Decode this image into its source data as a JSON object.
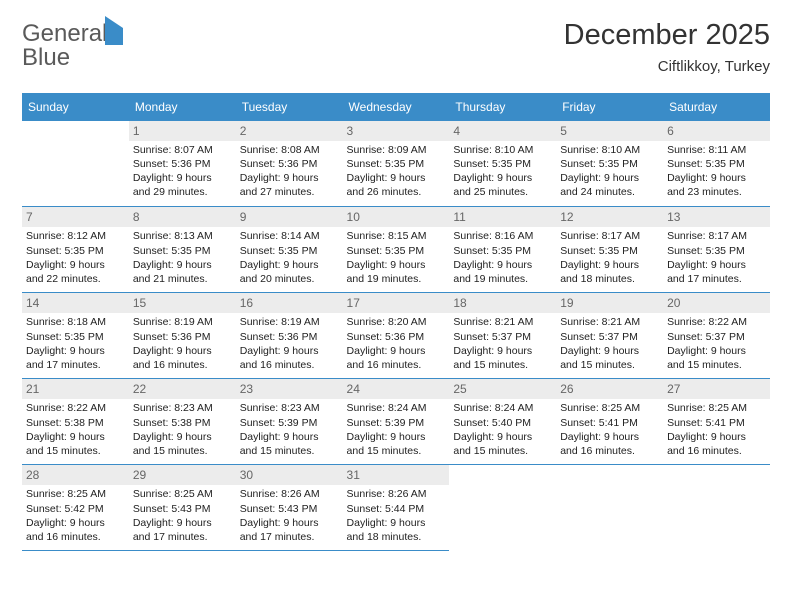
{
  "logo": {
    "text1": "General",
    "text2": "Blue"
  },
  "header": {
    "month_title": "December 2025",
    "location": "Ciftlikkoy, Turkey"
  },
  "colors": {
    "accent": "#3a8cc8",
    "daynum_bg": "#ececec",
    "text": "#222222",
    "header_text": "#ffffff"
  },
  "days_of_week": [
    "Sunday",
    "Monday",
    "Tuesday",
    "Wednesday",
    "Thursday",
    "Friday",
    "Saturday"
  ],
  "weeks": [
    [
      null,
      {
        "n": "1",
        "sr": "Sunrise: 8:07 AM",
        "ss": "Sunset: 5:36 PM",
        "d1": "Daylight: 9 hours",
        "d2": "and 29 minutes."
      },
      {
        "n": "2",
        "sr": "Sunrise: 8:08 AM",
        "ss": "Sunset: 5:36 PM",
        "d1": "Daylight: 9 hours",
        "d2": "and 27 minutes."
      },
      {
        "n": "3",
        "sr": "Sunrise: 8:09 AM",
        "ss": "Sunset: 5:35 PM",
        "d1": "Daylight: 9 hours",
        "d2": "and 26 minutes."
      },
      {
        "n": "4",
        "sr": "Sunrise: 8:10 AM",
        "ss": "Sunset: 5:35 PM",
        "d1": "Daylight: 9 hours",
        "d2": "and 25 minutes."
      },
      {
        "n": "5",
        "sr": "Sunrise: 8:10 AM",
        "ss": "Sunset: 5:35 PM",
        "d1": "Daylight: 9 hours",
        "d2": "and 24 minutes."
      },
      {
        "n": "6",
        "sr": "Sunrise: 8:11 AM",
        "ss": "Sunset: 5:35 PM",
        "d1": "Daylight: 9 hours",
        "d2": "and 23 minutes."
      }
    ],
    [
      {
        "n": "7",
        "sr": "Sunrise: 8:12 AM",
        "ss": "Sunset: 5:35 PM",
        "d1": "Daylight: 9 hours",
        "d2": "and 22 minutes."
      },
      {
        "n": "8",
        "sr": "Sunrise: 8:13 AM",
        "ss": "Sunset: 5:35 PM",
        "d1": "Daylight: 9 hours",
        "d2": "and 21 minutes."
      },
      {
        "n": "9",
        "sr": "Sunrise: 8:14 AM",
        "ss": "Sunset: 5:35 PM",
        "d1": "Daylight: 9 hours",
        "d2": "and 20 minutes."
      },
      {
        "n": "10",
        "sr": "Sunrise: 8:15 AM",
        "ss": "Sunset: 5:35 PM",
        "d1": "Daylight: 9 hours",
        "d2": "and 19 minutes."
      },
      {
        "n": "11",
        "sr": "Sunrise: 8:16 AM",
        "ss": "Sunset: 5:35 PM",
        "d1": "Daylight: 9 hours",
        "d2": "and 19 minutes."
      },
      {
        "n": "12",
        "sr": "Sunrise: 8:17 AM",
        "ss": "Sunset: 5:35 PM",
        "d1": "Daylight: 9 hours",
        "d2": "and 18 minutes."
      },
      {
        "n": "13",
        "sr": "Sunrise: 8:17 AM",
        "ss": "Sunset: 5:35 PM",
        "d1": "Daylight: 9 hours",
        "d2": "and 17 minutes."
      }
    ],
    [
      {
        "n": "14",
        "sr": "Sunrise: 8:18 AM",
        "ss": "Sunset: 5:35 PM",
        "d1": "Daylight: 9 hours",
        "d2": "and 17 minutes."
      },
      {
        "n": "15",
        "sr": "Sunrise: 8:19 AM",
        "ss": "Sunset: 5:36 PM",
        "d1": "Daylight: 9 hours",
        "d2": "and 16 minutes."
      },
      {
        "n": "16",
        "sr": "Sunrise: 8:19 AM",
        "ss": "Sunset: 5:36 PM",
        "d1": "Daylight: 9 hours",
        "d2": "and 16 minutes."
      },
      {
        "n": "17",
        "sr": "Sunrise: 8:20 AM",
        "ss": "Sunset: 5:36 PM",
        "d1": "Daylight: 9 hours",
        "d2": "and 16 minutes."
      },
      {
        "n": "18",
        "sr": "Sunrise: 8:21 AM",
        "ss": "Sunset: 5:37 PM",
        "d1": "Daylight: 9 hours",
        "d2": "and 15 minutes."
      },
      {
        "n": "19",
        "sr": "Sunrise: 8:21 AM",
        "ss": "Sunset: 5:37 PM",
        "d1": "Daylight: 9 hours",
        "d2": "and 15 minutes."
      },
      {
        "n": "20",
        "sr": "Sunrise: 8:22 AM",
        "ss": "Sunset: 5:37 PM",
        "d1": "Daylight: 9 hours",
        "d2": "and 15 minutes."
      }
    ],
    [
      {
        "n": "21",
        "sr": "Sunrise: 8:22 AM",
        "ss": "Sunset: 5:38 PM",
        "d1": "Daylight: 9 hours",
        "d2": "and 15 minutes."
      },
      {
        "n": "22",
        "sr": "Sunrise: 8:23 AM",
        "ss": "Sunset: 5:38 PM",
        "d1": "Daylight: 9 hours",
        "d2": "and 15 minutes."
      },
      {
        "n": "23",
        "sr": "Sunrise: 8:23 AM",
        "ss": "Sunset: 5:39 PM",
        "d1": "Daylight: 9 hours",
        "d2": "and 15 minutes."
      },
      {
        "n": "24",
        "sr": "Sunrise: 8:24 AM",
        "ss": "Sunset: 5:39 PM",
        "d1": "Daylight: 9 hours",
        "d2": "and 15 minutes."
      },
      {
        "n": "25",
        "sr": "Sunrise: 8:24 AM",
        "ss": "Sunset: 5:40 PM",
        "d1": "Daylight: 9 hours",
        "d2": "and 15 minutes."
      },
      {
        "n": "26",
        "sr": "Sunrise: 8:25 AM",
        "ss": "Sunset: 5:41 PM",
        "d1": "Daylight: 9 hours",
        "d2": "and 16 minutes."
      },
      {
        "n": "27",
        "sr": "Sunrise: 8:25 AM",
        "ss": "Sunset: 5:41 PM",
        "d1": "Daylight: 9 hours",
        "d2": "and 16 minutes."
      }
    ],
    [
      {
        "n": "28",
        "sr": "Sunrise: 8:25 AM",
        "ss": "Sunset: 5:42 PM",
        "d1": "Daylight: 9 hours",
        "d2": "and 16 minutes."
      },
      {
        "n": "29",
        "sr": "Sunrise: 8:25 AM",
        "ss": "Sunset: 5:43 PM",
        "d1": "Daylight: 9 hours",
        "d2": "and 17 minutes."
      },
      {
        "n": "30",
        "sr": "Sunrise: 8:26 AM",
        "ss": "Sunset: 5:43 PM",
        "d1": "Daylight: 9 hours",
        "d2": "and 17 minutes."
      },
      {
        "n": "31",
        "sr": "Sunrise: 8:26 AM",
        "ss": "Sunset: 5:44 PM",
        "d1": "Daylight: 9 hours",
        "d2": "and 18 minutes."
      },
      null,
      null,
      null
    ]
  ]
}
